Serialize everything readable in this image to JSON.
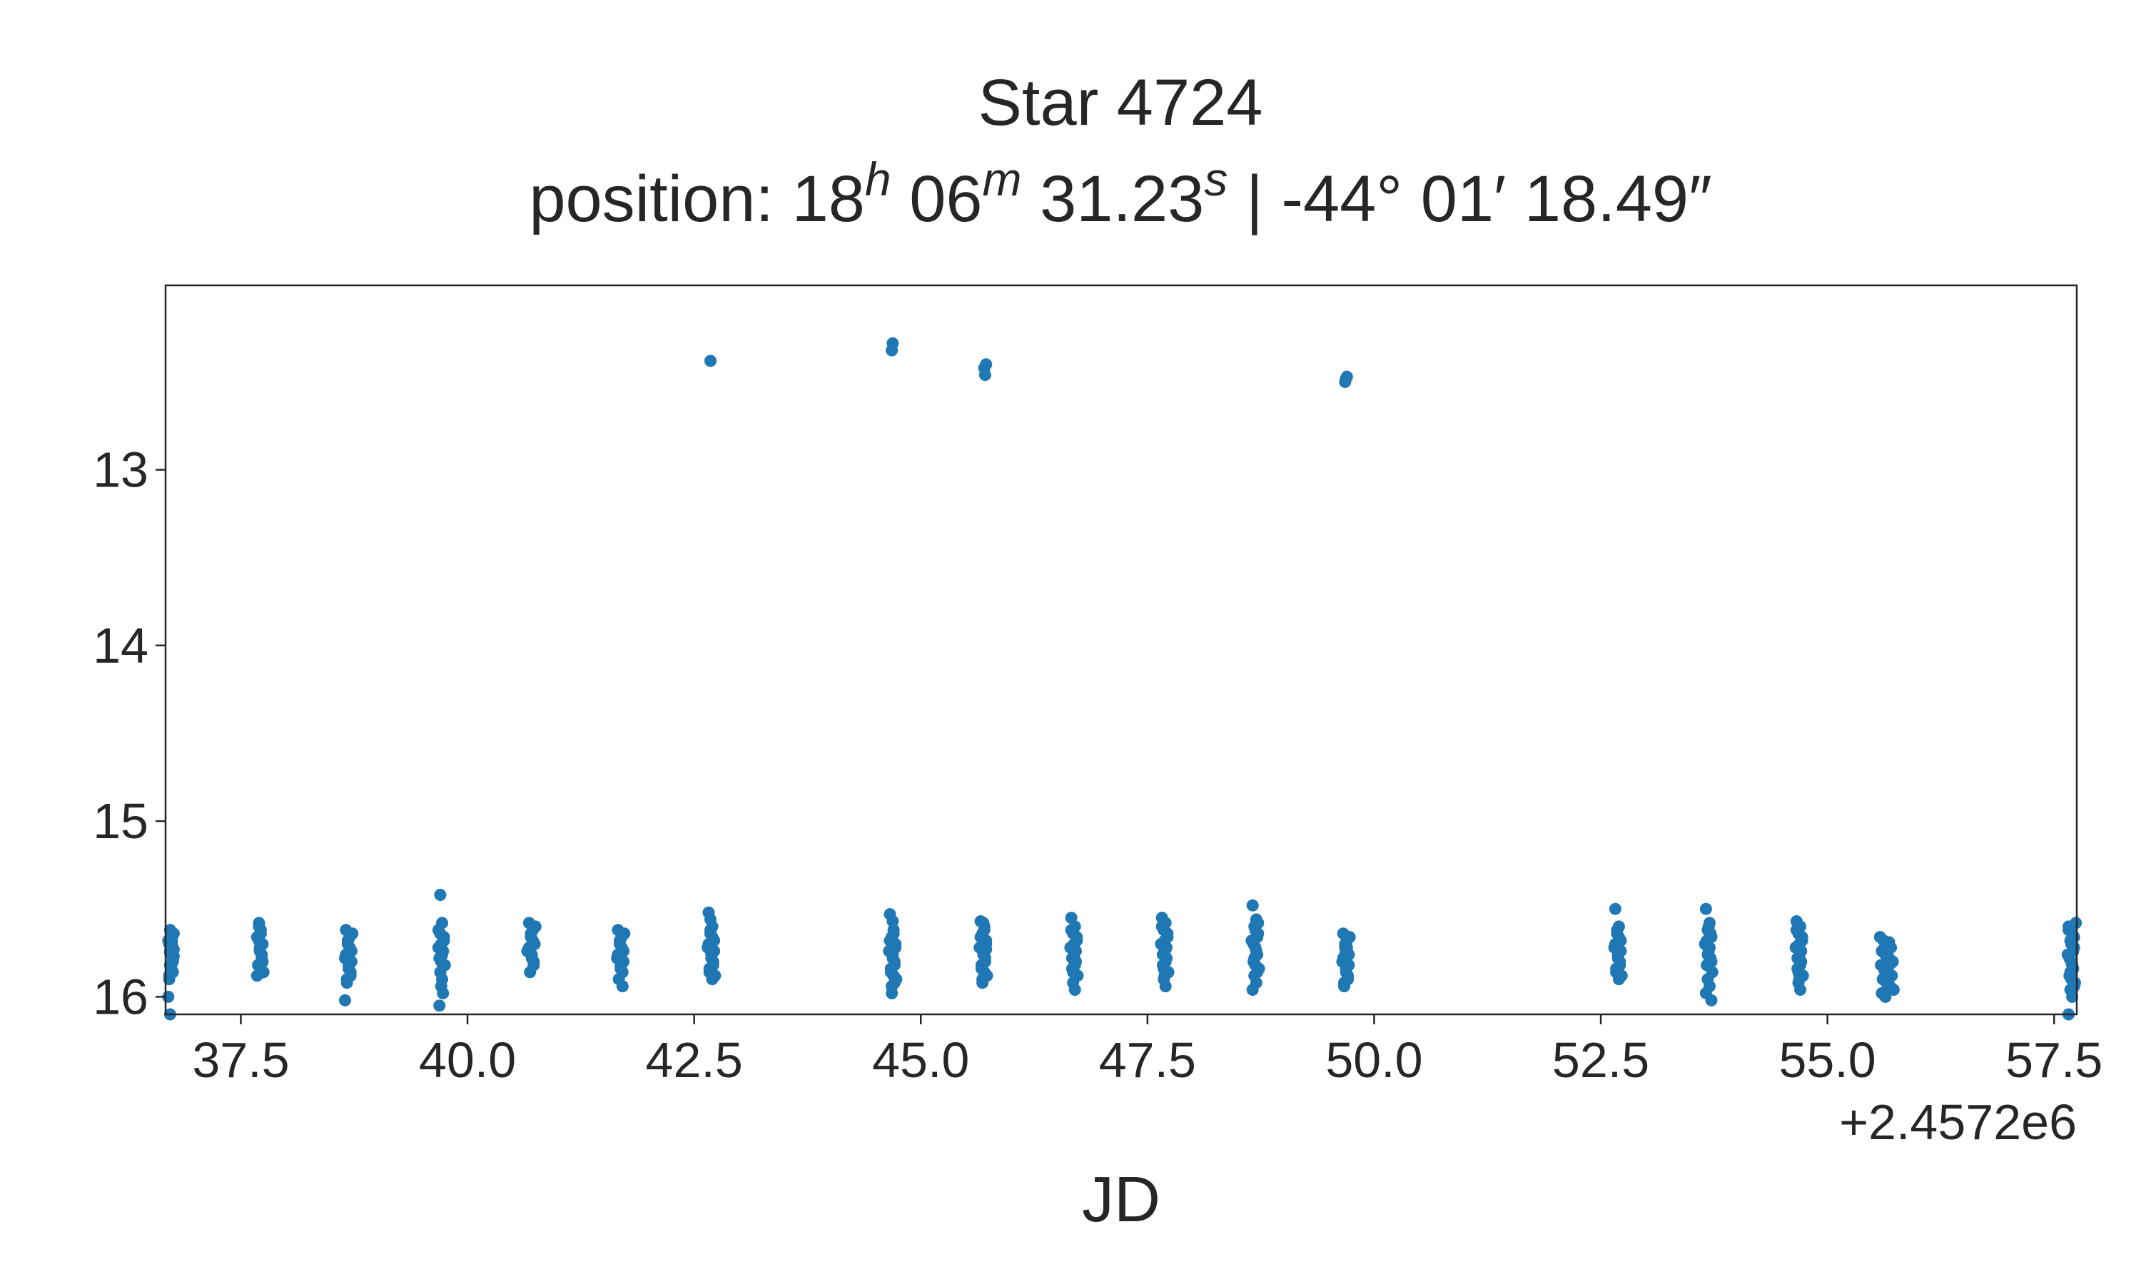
{
  "chart_data": {
    "type": "scatter",
    "title": "Star 4724",
    "subtitle_parts": {
      "prefix": "position: ",
      "ra_h": "18",
      "ra_h_unit": "h",
      "ra_m": "06",
      "ra_m_unit": "m",
      "ra_s": "31.23",
      "ra_s_unit": "s",
      "separator": " | ",
      "dec_deg": "-44°",
      "dec_min": "01′",
      "dec_sec": "18.49″"
    },
    "xlabel": "JD",
    "ylabel": "",
    "x_offset_label": "+2.4572e6",
    "xlim": [
      36.67,
      57.75
    ],
    "ylim": [
      16.1,
      11.95
    ],
    "y_inverted": true,
    "grid": false,
    "marker_color": "#1f77b4",
    "x_ticks": [
      "37.5",
      "40.0",
      "42.5",
      "45.0",
      "47.5",
      "50.0",
      "52.5",
      "55.0",
      "57.5"
    ],
    "y_ticks": [
      "13",
      "14",
      "15",
      "16"
    ],
    "series": [
      {
        "x": [
          36.72,
          36.74,
          36.71,
          36.76,
          36.73,
          36.75,
          36.72,
          36.74,
          36.7,
          36.73,
          36.76,
          36.71,
          36.72,
          36.75,
          36.74,
          36.73,
          36.71,
          36.76,
          36.72,
          36.74,
          36.7,
          36.75,
          36.72,
          36.74,
          37.7,
          37.72,
          37.68,
          37.74,
          37.71,
          37.73,
          37.69,
          37.75,
          37.7,
          37.72,
          37.71,
          37.73,
          37.7,
          37.74,
          37.68,
          37.72,
          37.71,
          38.66,
          38.7,
          38.68,
          38.72,
          38.65,
          38.69,
          38.71,
          38.67,
          38.73,
          38.68,
          38.7,
          38.66,
          38.72,
          38.69,
          38.71,
          38.67,
          38.65,
          39.7,
          39.72,
          39.68,
          39.74,
          39.71,
          39.73,
          39.69,
          39.75,
          39.7,
          39.72,
          39.71,
          39.73,
          39.7,
          39.74,
          39.68,
          39.72,
          39.71,
          39.69,
          40.68,
          40.72,
          40.7,
          40.74,
          40.66,
          40.71,
          40.73,
          40.69,
          40.75,
          40.7,
          40.72,
          40.68,
          40.71,
          40.73,
          41.66,
          41.7,
          41.68,
          41.72,
          41.65,
          41.69,
          41.71,
          41.67,
          41.73,
          41.68,
          41.7,
          41.66,
          41.72,
          41.69,
          41.71,
          42.66,
          42.7,
          42.68,
          42.72,
          42.65,
          42.69,
          42.71,
          42.67,
          42.73,
          42.68,
          42.7,
          42.66,
          42.72,
          42.69,
          42.71,
          42.67,
          42.7,
          42.68,
          42.69,
          44.66,
          44.7,
          44.68,
          44.72,
          44.65,
          44.69,
          44.71,
          44.67,
          44.73,
          44.68,
          44.7,
          44.66,
          44.72,
          44.69,
          44.71,
          44.67,
          44.7,
          44.68,
          44.69,
          44.71,
          45.66,
          45.7,
          45.68,
          45.72,
          45.65,
          45.69,
          45.71,
          45.67,
          45.73,
          45.68,
          45.7,
          45.66,
          45.72,
          45.69,
          45.71,
          45.67,
          45.7,
          45.68,
          45.69,
          45.72,
          46.66,
          46.7,
          46.68,
          46.72,
          46.65,
          46.69,
          46.71,
          46.67,
          46.73,
          46.68,
          46.7,
          46.66,
          46.72,
          46.69,
          46.71,
          46.67,
          46.7,
          46.68,
          47.66,
          47.7,
          47.68,
          47.72,
          47.65,
          47.69,
          47.71,
          47.67,
          47.73,
          47.68,
          47.7,
          47.66,
          47.72,
          47.69,
          47.71,
          47.67,
          47.7,
          47.68,
          47.69,
          48.66,
          48.7,
          48.68,
          48.72,
          48.65,
          48.69,
          48.71,
          48.67,
          48.73,
          48.68,
          48.7,
          48.66,
          48.72,
          48.69,
          48.71,
          48.67,
          48.7,
          48.68,
          48.69,
          48.71,
          49.66,
          49.7,
          49.68,
          49.72,
          49.65,
          49.69,
          49.71,
          49.67,
          49.73,
          49.68,
          49.7,
          49.66,
          49.72,
          49.69,
          49.71,
          49.67,
          49.7,
          49.68,
          52.66,
          52.7,
          52.68,
          52.72,
          52.65,
          52.69,
          52.71,
          52.67,
          52.73,
          52.68,
          52.7,
          52.66,
          52.72,
          52.69,
          52.71,
          52.67,
          52.7,
          53.66,
          53.7,
          53.68,
          53.72,
          53.65,
          53.69,
          53.71,
          53.67,
          53.73,
          53.68,
          53.7,
          53.66,
          53.72,
          53.69,
          53.71,
          53.67,
          53.7,
          53.68,
          53.72,
          54.66,
          54.7,
          54.68,
          54.72,
          54.65,
          54.69,
          54.71,
          54.67,
          54.73,
          54.68,
          54.7,
          54.66,
          54.72,
          54.69,
          54.71,
          54.67,
          54.7,
          54.68,
          54.69,
          55.58,
          55.62,
          55.66,
          55.7,
          55.6,
          55.64,
          55.68,
          55.72,
          55.59,
          55.63,
          55.67,
          55.71,
          55.61,
          55.65,
          55.69,
          55.73,
          55.6,
          55.64,
          55.68,
          55.62,
          55.66,
          55.7,
          55.63,
          55.67,
          57.66,
          57.7,
          57.68,
          57.72,
          57.65,
          57.69,
          57.71,
          57.67,
          57.73,
          57.68,
          57.7,
          57.66,
          57.72,
          57.69,
          57.71,
          57.67,
          57.7,
          57.68,
          57.69,
          57.72,
          57.74,
          57.66,
          42.68,
          44.68,
          44.69,
          45.7,
          45.71,
          45.72,
          49.68,
          49.69,
          49.7
        ],
        "y": [
          15.62,
          15.66,
          15.7,
          15.73,
          15.76,
          15.79,
          15.82,
          15.85,
          15.68,
          15.72,
          15.64,
          15.88,
          15.75,
          15.8,
          15.67,
          15.83,
          15.9,
          15.77,
          15.74,
          15.69,
          16.0,
          15.86,
          16.1,
          15.71,
          15.58,
          15.62,
          15.66,
          15.7,
          15.74,
          15.78,
          15.82,
          15.86,
          15.6,
          15.64,
          15.72,
          15.76,
          15.68,
          15.8,
          15.88,
          15.84,
          15.73,
          15.62,
          15.66,
          15.7,
          15.74,
          15.78,
          15.82,
          15.86,
          15.9,
          15.64,
          15.68,
          15.72,
          15.76,
          15.8,
          15.84,
          15.88,
          15.92,
          16.02,
          15.42,
          15.58,
          15.62,
          15.66,
          15.7,
          15.74,
          15.78,
          15.82,
          15.86,
          15.9,
          15.94,
          15.98,
          15.64,
          15.68,
          15.72,
          15.76,
          15.8,
          16.05,
          15.58,
          15.62,
          15.66,
          15.7,
          15.74,
          15.78,
          15.82,
          15.86,
          15.6,
          15.64,
          15.68,
          15.72,
          15.76,
          15.8,
          15.62,
          15.66,
          15.7,
          15.74,
          15.78,
          15.82,
          15.86,
          15.9,
          15.64,
          15.68,
          15.72,
          15.76,
          15.8,
          15.84,
          15.94,
          15.52,
          15.6,
          15.64,
          15.68,
          15.72,
          15.76,
          15.8,
          15.84,
          15.88,
          15.62,
          15.66,
          15.7,
          15.74,
          15.78,
          15.82,
          15.86,
          15.9,
          15.56,
          15.73,
          15.53,
          15.62,
          15.66,
          15.7,
          15.74,
          15.78,
          15.82,
          15.86,
          15.9,
          15.94,
          15.64,
          15.68,
          15.72,
          15.76,
          15.8,
          15.84,
          15.88,
          15.98,
          15.57,
          15.92,
          15.57,
          15.6,
          15.64,
          15.68,
          15.72,
          15.76,
          15.8,
          15.84,
          15.88,
          15.92,
          15.62,
          15.66,
          15.7,
          15.74,
          15.78,
          15.82,
          15.86,
          15.9,
          15.58,
          15.73,
          15.55,
          15.6,
          15.64,
          15.68,
          15.72,
          15.76,
          15.8,
          15.84,
          15.88,
          15.92,
          15.96,
          15.62,
          15.66,
          15.7,
          15.74,
          15.78,
          15.82,
          15.86,
          15.55,
          15.58,
          15.62,
          15.66,
          15.7,
          15.74,
          15.78,
          15.82,
          15.86,
          15.9,
          15.94,
          15.6,
          15.64,
          15.68,
          15.72,
          15.76,
          15.8,
          15.84,
          15.88,
          15.48,
          15.56,
          15.6,
          15.64,
          15.68,
          15.72,
          15.76,
          15.8,
          15.84,
          15.88,
          15.92,
          15.96,
          15.58,
          15.62,
          15.66,
          15.7,
          15.74,
          15.78,
          15.82,
          15.86,
          15.64,
          15.68,
          15.72,
          15.76,
          15.8,
          15.84,
          15.88,
          15.92,
          15.66,
          15.7,
          15.74,
          15.78,
          15.82,
          15.86,
          15.9,
          15.94,
          15.72,
          15.76,
          15.5,
          15.6,
          15.64,
          15.68,
          15.72,
          15.76,
          15.8,
          15.84,
          15.88,
          15.62,
          15.66,
          15.7,
          15.74,
          15.78,
          15.82,
          15.86,
          15.9,
          15.5,
          15.58,
          15.62,
          15.66,
          15.7,
          15.74,
          15.78,
          15.82,
          15.86,
          15.9,
          15.94,
          15.98,
          16.02,
          15.6,
          15.64,
          15.68,
          15.72,
          15.76,
          15.8,
          15.57,
          15.6,
          15.64,
          15.68,
          15.72,
          15.76,
          15.8,
          15.84,
          15.88,
          15.92,
          15.96,
          15.62,
          15.66,
          15.7,
          15.74,
          15.78,
          15.82,
          15.86,
          15.9,
          15.66,
          15.68,
          15.7,
          15.72,
          15.74,
          15.76,
          15.78,
          15.8,
          15.82,
          15.84,
          15.86,
          15.88,
          15.9,
          15.92,
          15.94,
          15.96,
          15.98,
          16.0,
          15.69,
          15.73,
          15.77,
          15.81,
          15.85,
          15.89,
          15.6,
          15.64,
          15.68,
          15.72,
          15.76,
          15.8,
          15.84,
          15.88,
          15.92,
          15.96,
          16.0,
          15.62,
          15.66,
          15.7,
          15.74,
          15.78,
          15.82,
          15.86,
          15.9,
          15.94,
          15.58,
          16.1,
          12.38,
          12.32,
          12.28,
          12.42,
          12.46,
          12.4,
          12.5,
          12.48,
          12.47
        ]
      }
    ]
  }
}
